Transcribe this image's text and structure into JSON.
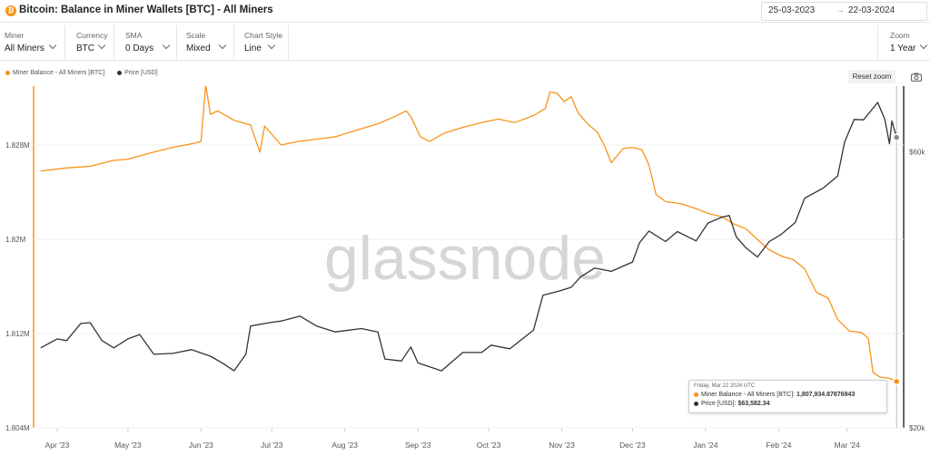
{
  "header": {
    "logo_letter": "₿",
    "title": "Bitcoin: Balance in Miner Wallets [BTC] - All Miners",
    "date_from": "25-03-2023",
    "date_arrow": "→",
    "date_to": "22-03-2024"
  },
  "controls": [
    {
      "label": "Miner",
      "value": "All Miners"
    },
    {
      "label": "Currency",
      "value": "BTC"
    },
    {
      "label": "SMA",
      "value": "0 Days"
    },
    {
      "label": "Scale",
      "value": "Mixed"
    },
    {
      "label": "Chart Style",
      "value": "Line"
    }
  ],
  "zoom": {
    "label": "Zoom",
    "value": "1 Year"
  },
  "toolbar": {
    "reset_zoom": "Reset zoom",
    "camera_icon": "camera-icon"
  },
  "watermark": "glassnode",
  "colors": {
    "miner_balance": "#f7931a",
    "price": "#333333",
    "accent": "#f7931a"
  },
  "tooltip": {
    "date": "Friday, Mar 22 2024 UTC",
    "row1_label": "Miner Balance - All Miners [BTC]:",
    "row1_value": "1,807,934.87876943",
    "row2_label": "Price [USD]:",
    "row2_value": "$63,582.34"
  },
  "chart_data": {
    "type": "line",
    "x_ticks": [
      "Apr '23",
      "May '23",
      "Jun '23",
      "Jul '23",
      "Aug '23",
      "Sep '23",
      "Oct '23",
      "Nov '23",
      "Dec '23",
      "Jan '24",
      "Feb '24",
      "Mar '24"
    ],
    "y_left_ticks": [
      "1.828M",
      "1.82M",
      "1.812M",
      "1.804M"
    ],
    "y_right_ticks": [
      "$60k",
      "$20k"
    ],
    "y_left_range": [
      1804000,
      1833000
    ],
    "y_right_scale": "log",
    "y_right_range": [
      20000,
      78000
    ],
    "legend_position": "top-left",
    "grid": true,
    "series": [
      {
        "name": "Miner Balance - All Miners [BTC]",
        "axis": "left",
        "color": "#f7931a",
        "points": [
          [
            "2023-03-25",
            1825800
          ],
          [
            "2023-04-05",
            1826050
          ],
          [
            "2023-04-15",
            1826200
          ],
          [
            "2023-04-25",
            1826700
          ],
          [
            "2023-05-01",
            1826800
          ],
          [
            "2023-05-10",
            1827300
          ],
          [
            "2023-05-20",
            1827800
          ],
          [
            "2023-05-28",
            1828100
          ],
          [
            "2023-06-01",
            1828300
          ],
          [
            "2023-06-03",
            1833100
          ],
          [
            "2023-06-05",
            1830600
          ],
          [
            "2023-06-08",
            1830900
          ],
          [
            "2023-06-15",
            1830100
          ],
          [
            "2023-06-22",
            1829700
          ],
          [
            "2023-06-26",
            1827400
          ],
          [
            "2023-06-28",
            1829600
          ],
          [
            "2023-07-05",
            1828000
          ],
          [
            "2023-07-12",
            1828300
          ],
          [
            "2023-07-20",
            1828500
          ],
          [
            "2023-07-28",
            1828700
          ],
          [
            "2023-08-05",
            1829200
          ],
          [
            "2023-08-15",
            1829800
          ],
          [
            "2023-08-22",
            1830400
          ],
          [
            "2023-08-27",
            1830900
          ],
          [
            "2023-08-29",
            1830400
          ],
          [
            "2023-09-02",
            1828700
          ],
          [
            "2023-09-06",
            1828300
          ],
          [
            "2023-09-12",
            1829000
          ],
          [
            "2023-09-20",
            1829500
          ],
          [
            "2023-09-28",
            1829900
          ],
          [
            "2023-10-05",
            1830200
          ],
          [
            "2023-10-12",
            1829900
          ],
          [
            "2023-10-20",
            1830500
          ],
          [
            "2023-10-25",
            1831100
          ],
          [
            "2023-10-27",
            1832500
          ],
          [
            "2023-10-30",
            1832400
          ],
          [
            "2023-11-02",
            1831700
          ],
          [
            "2023-11-05",
            1832100
          ],
          [
            "2023-11-08",
            1830700
          ],
          [
            "2023-11-12",
            1829800
          ],
          [
            "2023-11-16",
            1829100
          ],
          [
            "2023-11-19",
            1828000
          ],
          [
            "2023-11-22",
            1826500
          ],
          [
            "2023-11-27",
            1827700
          ],
          [
            "2023-12-01",
            1827800
          ],
          [
            "2023-12-05",
            1827600
          ],
          [
            "2023-12-08",
            1826300
          ],
          [
            "2023-12-11",
            1823800
          ],
          [
            "2023-12-15",
            1823200
          ],
          [
            "2023-12-22",
            1823000
          ],
          [
            "2023-12-28",
            1822600
          ],
          [
            "2024-01-02",
            1822200
          ],
          [
            "2024-01-08",
            1821900
          ],
          [
            "2024-01-13",
            1821300
          ],
          [
            "2024-01-18",
            1820900
          ],
          [
            "2024-01-24",
            1819800
          ],
          [
            "2024-01-28",
            1819100
          ],
          [
            "2024-02-03",
            1818500
          ],
          [
            "2024-02-07",
            1818300
          ],
          [
            "2024-02-12",
            1817500
          ],
          [
            "2024-02-17",
            1815500
          ],
          [
            "2024-02-22",
            1815000
          ],
          [
            "2024-02-26",
            1813200
          ],
          [
            "2024-03-02",
            1812200
          ],
          [
            "2024-03-07",
            1812100
          ],
          [
            "2024-03-10",
            1811600
          ],
          [
            "2024-03-12",
            1808700
          ],
          [
            "2024-03-15",
            1808300
          ],
          [
            "2024-03-19",
            1808200
          ],
          [
            "2024-03-22",
            1807935
          ]
        ]
      },
      {
        "name": "Price [USD]",
        "axis": "right",
        "color": "#333333",
        "points": [
          [
            "2023-03-25",
            27500
          ],
          [
            "2023-04-01",
            28500
          ],
          [
            "2023-04-05",
            28300
          ],
          [
            "2023-04-11",
            30300
          ],
          [
            "2023-04-15",
            30400
          ],
          [
            "2023-04-20",
            28300
          ],
          [
            "2023-04-25",
            27500
          ],
          [
            "2023-05-01",
            28500
          ],
          [
            "2023-05-06",
            29000
          ],
          [
            "2023-05-12",
            26800
          ],
          [
            "2023-05-20",
            26900
          ],
          [
            "2023-05-28",
            27300
          ],
          [
            "2023-06-05",
            26600
          ],
          [
            "2023-06-10",
            25900
          ],
          [
            "2023-06-15",
            25100
          ],
          [
            "2023-06-20",
            26800
          ],
          [
            "2023-06-22",
            30000
          ],
          [
            "2023-06-30",
            30400
          ],
          [
            "2023-07-05",
            30600
          ],
          [
            "2023-07-13",
            31200
          ],
          [
            "2023-07-20",
            30000
          ],
          [
            "2023-07-28",
            29300
          ],
          [
            "2023-08-08",
            29700
          ],
          [
            "2023-08-15",
            29300
          ],
          [
            "2023-08-18",
            26300
          ],
          [
            "2023-08-25",
            26100
          ],
          [
            "2023-08-29",
            27600
          ],
          [
            "2023-09-01",
            25900
          ],
          [
            "2023-09-11",
            25100
          ],
          [
            "2023-09-20",
            27000
          ],
          [
            "2023-09-28",
            27000
          ],
          [
            "2023-10-02",
            27800
          ],
          [
            "2023-10-10",
            27400
          ],
          [
            "2023-10-20",
            29500
          ],
          [
            "2023-10-24",
            33900
          ],
          [
            "2023-10-31",
            34500
          ],
          [
            "2023-11-05",
            35000
          ],
          [
            "2023-11-09",
            36500
          ],
          [
            "2023-11-15",
            37800
          ],
          [
            "2023-11-22",
            37300
          ],
          [
            "2023-12-01",
            38700
          ],
          [
            "2023-12-04",
            41800
          ],
          [
            "2023-12-08",
            43800
          ],
          [
            "2023-12-15",
            42000
          ],
          [
            "2023-12-20",
            43700
          ],
          [
            "2023-12-28",
            42100
          ],
          [
            "2024-01-02",
            45200
          ],
          [
            "2024-01-08",
            46300
          ],
          [
            "2024-01-11",
            46600
          ],
          [
            "2024-01-14",
            42800
          ],
          [
            "2024-01-18",
            41000
          ],
          [
            "2024-01-23",
            39500
          ],
          [
            "2024-01-28",
            42000
          ],
          [
            "2024-02-02",
            43200
          ],
          [
            "2024-02-08",
            45300
          ],
          [
            "2024-02-12",
            49900
          ],
          [
            "2024-02-20",
            52000
          ],
          [
            "2024-02-26",
            54500
          ],
          [
            "2024-02-29",
            62500
          ],
          [
            "2024-03-04",
            68300
          ],
          [
            "2024-03-08",
            68200
          ],
          [
            "2024-03-14",
            73100
          ],
          [
            "2024-03-17",
            68400
          ],
          [
            "2024-03-19",
            62000
          ],
          [
            "2024-03-20",
            67900
          ],
          [
            "2024-03-22",
            63582
          ]
        ]
      }
    ],
    "tooltip_date": "2024-03-22"
  }
}
